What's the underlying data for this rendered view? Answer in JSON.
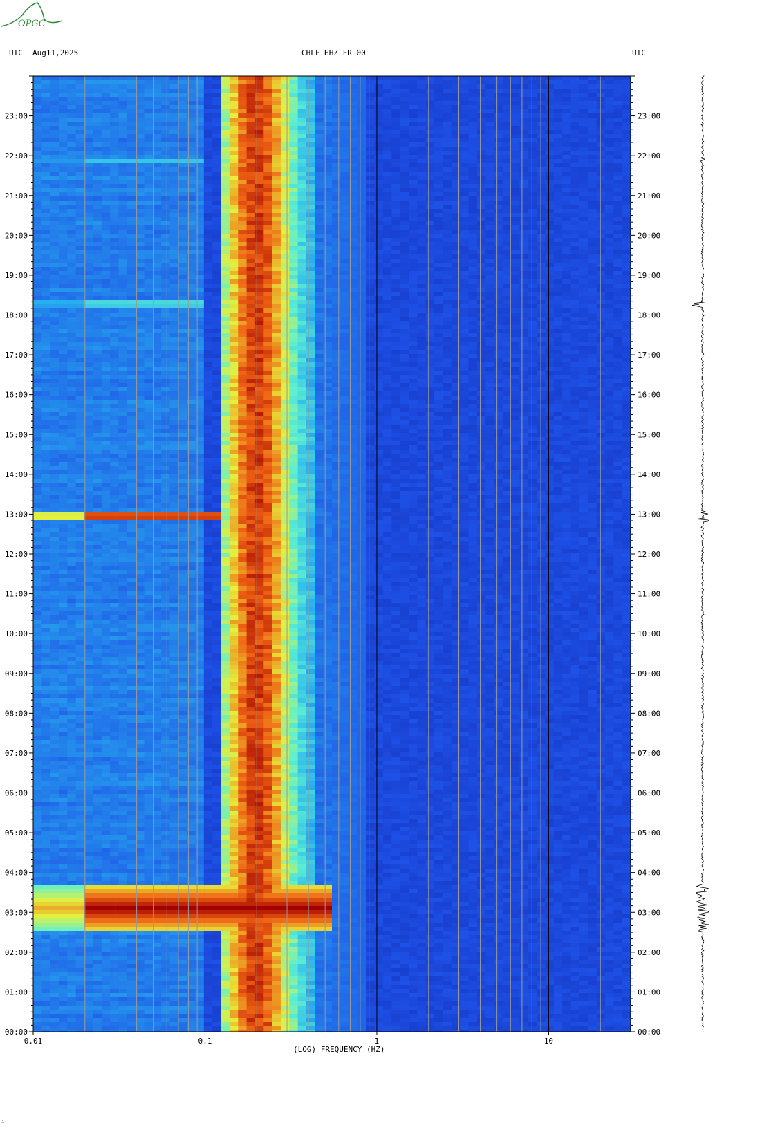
{
  "header": {
    "left_tz": "UTC",
    "date": "Aug11,2025",
    "station": "CHLF HHZ FR 00",
    "right_tz": "UTC"
  },
  "logo": {
    "text": "OPGC",
    "color": "#2e8b3a"
  },
  "chart_data": {
    "type": "heatmap",
    "title": "CHLF HHZ FR 00",
    "xlabel": "(LOG) FREQUENCY (HZ)",
    "xscale": "log",
    "xlim": [
      0.01,
      30
    ],
    "x_ticks": [
      {
        "value": 0.01,
        "label": "0.01"
      },
      {
        "value": 0.1,
        "label": "0.1"
      },
      {
        "value": 1,
        "label": "1"
      },
      {
        "value": 10,
        "label": "10"
      }
    ],
    "ylim_hours": [
      0,
      24
    ],
    "y_ticks": [
      "00:00",
      "01:00",
      "02:00",
      "03:00",
      "04:00",
      "05:00",
      "06:00",
      "07:00",
      "08:00",
      "09:00",
      "10:00",
      "11:00",
      "12:00",
      "13:00",
      "14:00",
      "15:00",
      "16:00",
      "17:00",
      "18:00",
      "19:00",
      "20:00",
      "21:00",
      "22:00",
      "23:00"
    ],
    "grid": true,
    "colormap": [
      "#0a1a9a",
      "#1e50e6",
      "#28b4f0",
      "#5ef0d0",
      "#e6f03c",
      "#f06414",
      "#a00000"
    ],
    "microseism_band_hz": [
      0.12,
      0.45
    ],
    "events": [
      {
        "start_hour": 2.5,
        "end_hour": 3.7,
        "fmax_hz": 0.55,
        "level": "strong"
      },
      {
        "start_hour": 12.8,
        "end_hour": 13.1,
        "fmax_hz": 0.12,
        "level": "strong"
      },
      {
        "start_hour": 18.2,
        "end_hour": 18.35,
        "fmax_hz": 0.1,
        "level": "moderate"
      },
      {
        "start_hour": 21.8,
        "end_hour": 21.95,
        "fmax_hz": 0.1,
        "level": "weak"
      }
    ],
    "seismogram_color": "#000000"
  }
}
